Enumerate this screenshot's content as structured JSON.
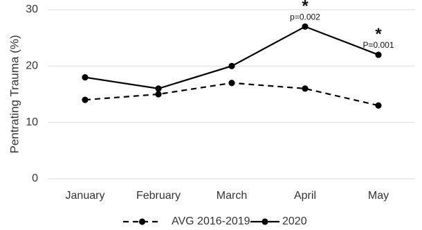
{
  "chart_data": {
    "type": "line",
    "categories": [
      "January",
      "February",
      "March",
      "April",
      "May"
    ],
    "series": [
      {
        "name": "AVG 2016-2019",
        "values": [
          14,
          15,
          17,
          16,
          13
        ],
        "line_style": "dashed",
        "color": "#000000"
      },
      {
        "name": "2020",
        "values": [
          18,
          16,
          20,
          27,
          22
        ],
        "line_style": "solid",
        "color": "#000000"
      }
    ],
    "title": "",
    "xlabel": "",
    "ylabel": "Pentrating Trauma (%)",
    "ylim": [
      0,
      30
    ],
    "yticks": [
      "0",
      "10",
      "20",
      "30"
    ],
    "grid": "horizontal",
    "legend_position": "bottom",
    "annotations": [
      {
        "category": "April",
        "star": "*",
        "text": "p=0.002"
      },
      {
        "category": "May",
        "star": "*",
        "text": "P=0.001"
      }
    ]
  }
}
